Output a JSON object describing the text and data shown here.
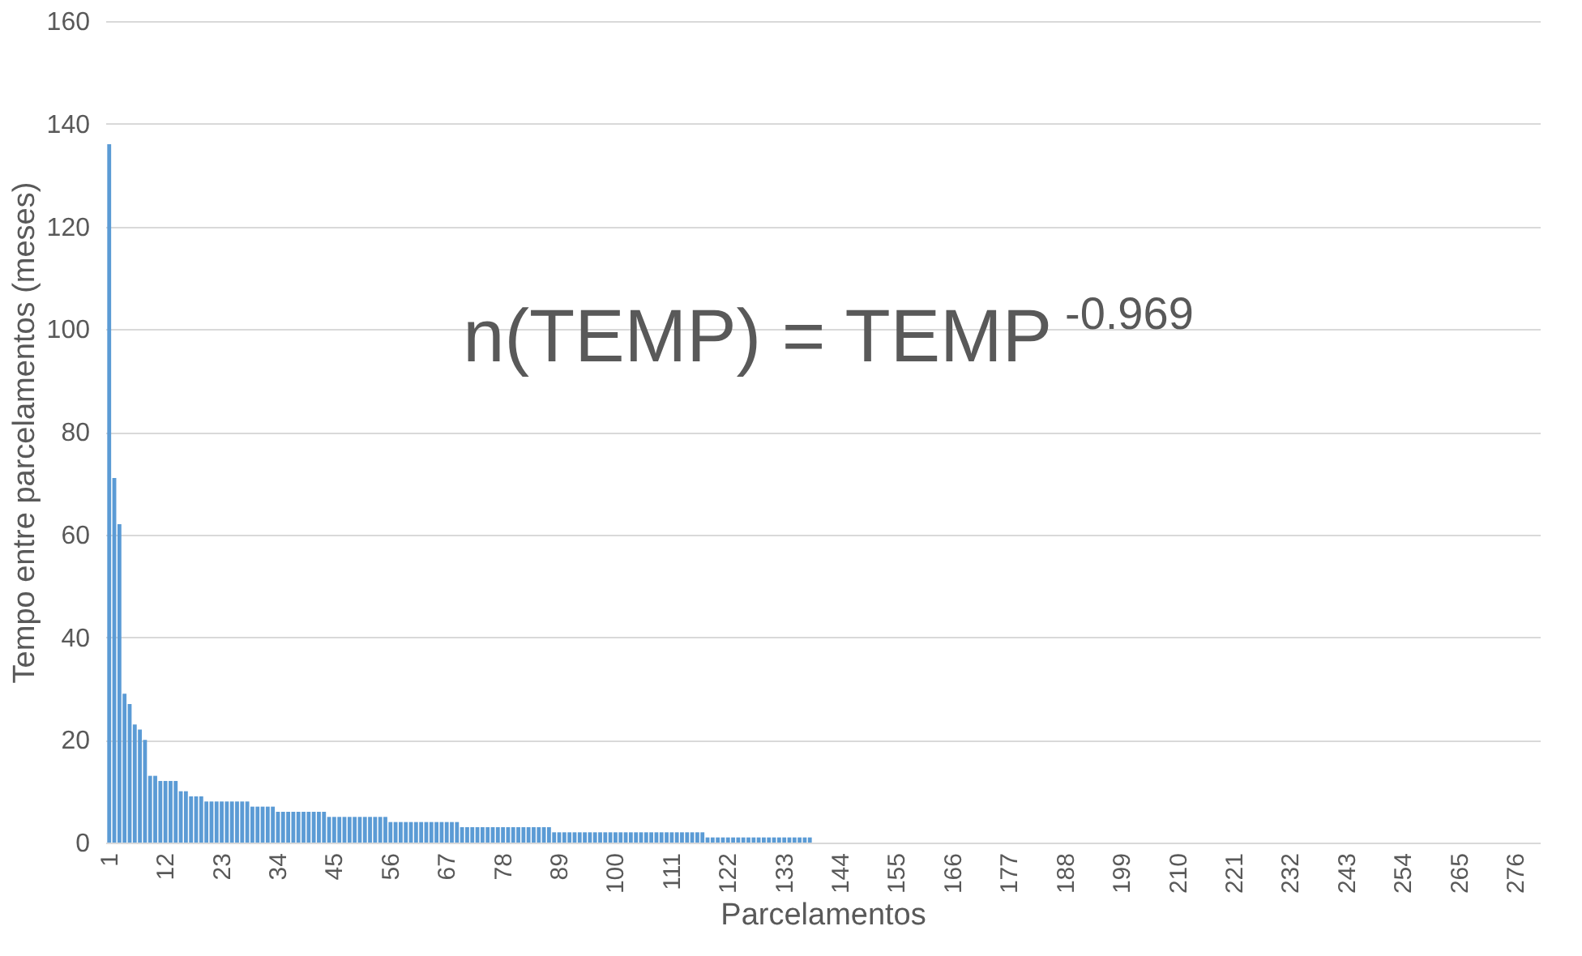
{
  "chart_data": {
    "type": "bar",
    "xlabel": "Parcelamentos",
    "ylabel": "Tempo entre parcelamentos (meses)",
    "categories": [
      "1",
      null,
      null,
      null,
      null,
      null,
      null,
      null,
      null,
      null,
      null,
      "12",
      null,
      null,
      null,
      null,
      null,
      null,
      null,
      null,
      null,
      null,
      "23",
      null,
      null,
      null,
      null,
      null,
      null,
      null,
      null,
      null,
      null,
      "34",
      null,
      null,
      null,
      null,
      null,
      null,
      null,
      null,
      null,
      null,
      "45",
      null,
      null,
      null,
      null,
      null,
      null,
      null,
      null,
      null,
      null,
      "56",
      null,
      null,
      null,
      null,
      null,
      null,
      null,
      null,
      null,
      null,
      "67",
      null,
      null,
      null,
      null,
      null,
      null,
      null,
      null,
      null,
      null,
      "78",
      null,
      null,
      null,
      null,
      null,
      null,
      null,
      null,
      null,
      null,
      "89",
      null,
      null,
      null,
      null,
      null,
      null,
      null,
      null,
      null,
      null,
      "100",
      null,
      null,
      null,
      null,
      null,
      null,
      null,
      null,
      null,
      null,
      "111",
      null,
      null,
      null,
      null,
      null,
      null,
      null,
      null,
      null,
      null,
      "122",
      null,
      null,
      null,
      null,
      null,
      null,
      null,
      null,
      null,
      null,
      "133",
      null,
      null,
      null,
      null,
      null,
      null,
      null,
      null,
      null,
      null,
      "144",
      null,
      null,
      null,
      null,
      null,
      null,
      null,
      null,
      null,
      null,
      "155",
      null,
      null,
      null,
      null,
      null,
      null,
      null,
      null,
      null,
      null,
      "166",
      null,
      null,
      null,
      null,
      null,
      null,
      null,
      null,
      null,
      null,
      "177",
      null,
      null,
      null,
      null,
      null,
      null,
      null,
      null,
      null,
      null,
      "188",
      null,
      null,
      null,
      null,
      null,
      null,
      null,
      null,
      null,
      null,
      "199",
      null,
      null,
      null,
      null,
      null,
      null,
      null,
      null,
      null,
      null,
      "210",
      null,
      null,
      null,
      null,
      null,
      null,
      null,
      null,
      null,
      null,
      "221",
      null,
      null,
      null,
      null,
      null,
      null,
      null,
      null,
      null,
      null,
      "232",
      null,
      null,
      null,
      null,
      null,
      null,
      null,
      null,
      null,
      null,
      "243",
      null,
      null,
      null,
      null,
      null,
      null,
      null,
      null,
      null,
      null,
      "254",
      null,
      null,
      null,
      null,
      null,
      null,
      null,
      null,
      null,
      null,
      "265",
      null,
      null,
      null,
      null,
      null,
      null,
      null,
      null,
      null,
      null,
      "276",
      null,
      null,
      null,
      null
    ],
    "values": [
      136,
      71,
      62,
      29,
      27,
      23,
      22,
      20,
      13,
      13,
      12,
      12,
      12,
      12,
      10,
      10,
      9,
      9,
      9,
      8,
      8,
      8,
      8,
      8,
      8,
      8,
      8,
      8,
      7,
      7,
      7,
      7,
      7,
      6,
      6,
      6,
      6,
      6,
      6,
      6,
      6,
      6,
      6,
      5,
      5,
      5,
      5,
      5,
      5,
      5,
      5,
      5,
      5,
      5,
      5,
      4,
      4,
      4,
      4,
      4,
      4,
      4,
      4,
      4,
      4,
      4,
      4,
      4,
      4,
      3,
      3,
      3,
      3,
      3,
      3,
      3,
      3,
      3,
      3,
      3,
      3,
      3,
      3,
      3,
      3,
      3,
      3,
      2,
      2,
      2,
      2,
      2,
      2,
      2,
      2,
      2,
      2,
      2,
      2,
      2,
      2,
      2,
      2,
      2,
      2,
      2,
      2,
      2,
      2,
      2,
      2,
      2,
      2,
      2,
      2,
      2,
      2,
      1,
      1,
      1,
      1,
      1,
      1,
      1,
      1,
      1,
      1,
      1,
      1,
      1,
      1,
      1,
      1,
      1,
      1,
      1,
      1,
      1,
      0,
      0,
      0,
      0,
      0,
      0,
      0,
      0,
      0,
      0,
      0,
      0,
      0,
      0,
      0,
      0,
      0,
      0,
      0,
      0,
      0,
      0,
      0,
      0,
      0,
      0,
      0,
      0,
      0,
      0,
      0,
      0,
      0,
      0,
      0,
      0,
      0,
      0,
      0,
      0,
      0,
      0,
      0,
      0,
      0,
      0,
      0,
      0,
      0,
      0,
      0,
      0,
      0,
      0,
      0,
      0,
      0,
      0,
      0,
      0,
      0,
      0,
      0,
      0,
      0,
      0,
      0,
      0,
      0,
      0,
      0,
      0,
      0,
      0,
      0,
      0,
      0,
      0,
      0,
      0,
      0,
      0,
      0,
      0,
      0,
      0,
      0,
      0,
      0,
      0,
      0,
      0,
      0,
      0,
      0,
      0,
      0,
      0,
      0,
      0,
      0,
      0,
      0,
      0,
      0,
      0,
      0,
      0,
      0,
      0,
      0,
      0,
      0,
      0,
      0,
      0,
      0,
      0,
      0,
      0,
      0,
      0,
      0,
      0,
      0,
      0,
      0,
      0,
      0,
      0,
      0,
      0,
      0,
      0,
      0,
      0,
      0,
      0,
      0,
      0,
      0,
      0
    ],
    "color": "#5b9bd5",
    "ylim": [
      0,
      160
    ],
    "yticks": [
      0,
      20,
      40,
      60,
      80,
      100,
      120,
      140,
      160
    ],
    "grid": "y",
    "annotations": [
      "n(TEMP) = TEMP$^{-0.969}$"
    ]
  }
}
